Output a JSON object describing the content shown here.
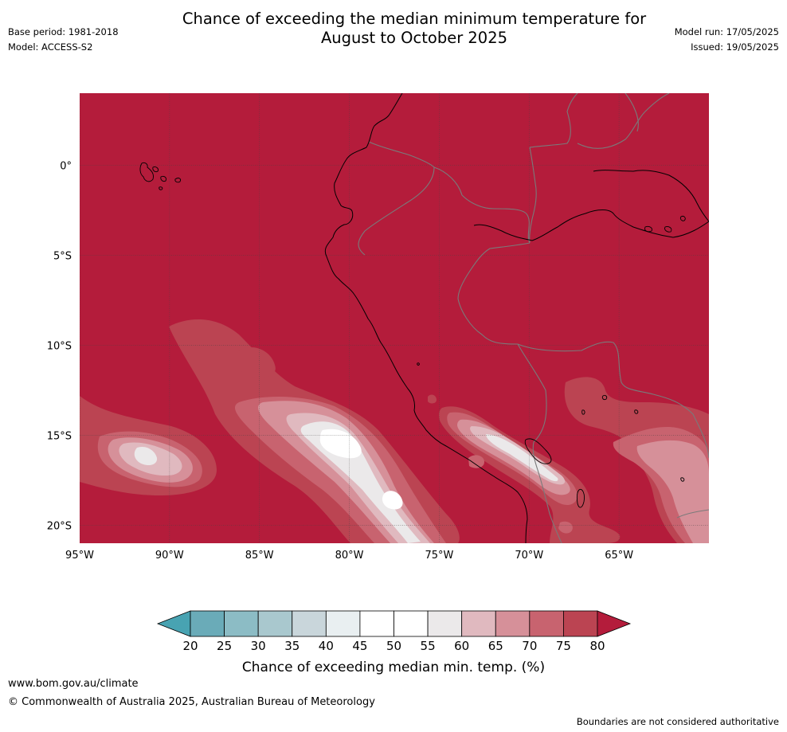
{
  "header": {
    "title_line1": "Chance of exceeding the median minimum temperature for",
    "title_line2": "August to October 2025",
    "base_period": "Base period: 1981-2018",
    "model": "Model: ACCESS-S2",
    "model_run": "Model run: 17/05/2025",
    "issued": "Issued: 19/05/2025"
  },
  "map": {
    "lon_range": [
      -95,
      -60
    ],
    "lat_range": [
      -21,
      4
    ],
    "lon_ticks": [
      {
        "value": -95,
        "label": "95°W"
      },
      {
        "value": -90,
        "label": "90°W"
      },
      {
        "value": -85,
        "label": "85°W"
      },
      {
        "value": -80,
        "label": "80°W"
      },
      {
        "value": -75,
        "label": "75°W"
      },
      {
        "value": -70,
        "label": "70°W"
      },
      {
        "value": -65,
        "label": "65°W"
      }
    ],
    "lat_ticks": [
      {
        "value": 0,
        "label": "0°"
      },
      {
        "value": -5,
        "label": "5°S"
      },
      {
        "value": -10,
        "label": "10°S"
      },
      {
        "value": -15,
        "label": "15°S"
      },
      {
        "value": -20,
        "label": "20°S"
      }
    ],
    "background_class": "80",
    "coastline_color": "#000000",
    "border_color": "#7a7a7a",
    "grid_color": "#444444"
  },
  "colorbar": {
    "title": "Chance of exceeding median min. temp. (%)",
    "ticks": [
      "20",
      "25",
      "30",
      "35",
      "40",
      "45",
      "50",
      "55",
      "60",
      "65",
      "70",
      "75",
      "80"
    ],
    "colors": [
      "#48a3b2",
      "#6aabb8",
      "#8cbcc5",
      "#a9c8ce",
      "#c9d6db",
      "#e9eff1",
      "#ffffff",
      "#ffffff",
      "#ebe9ea",
      "#e0b9bf",
      "#d69099",
      "#c8636f",
      "#bb4452",
      "#b41c3b"
    ]
  },
  "footer": {
    "url": "www.bom.gov.au/climate",
    "copyright": "© Commonwealth of Australia 2025, Australian Bureau of Meteorology",
    "disclaimer": "Boundaries are not considered authoritative"
  }
}
